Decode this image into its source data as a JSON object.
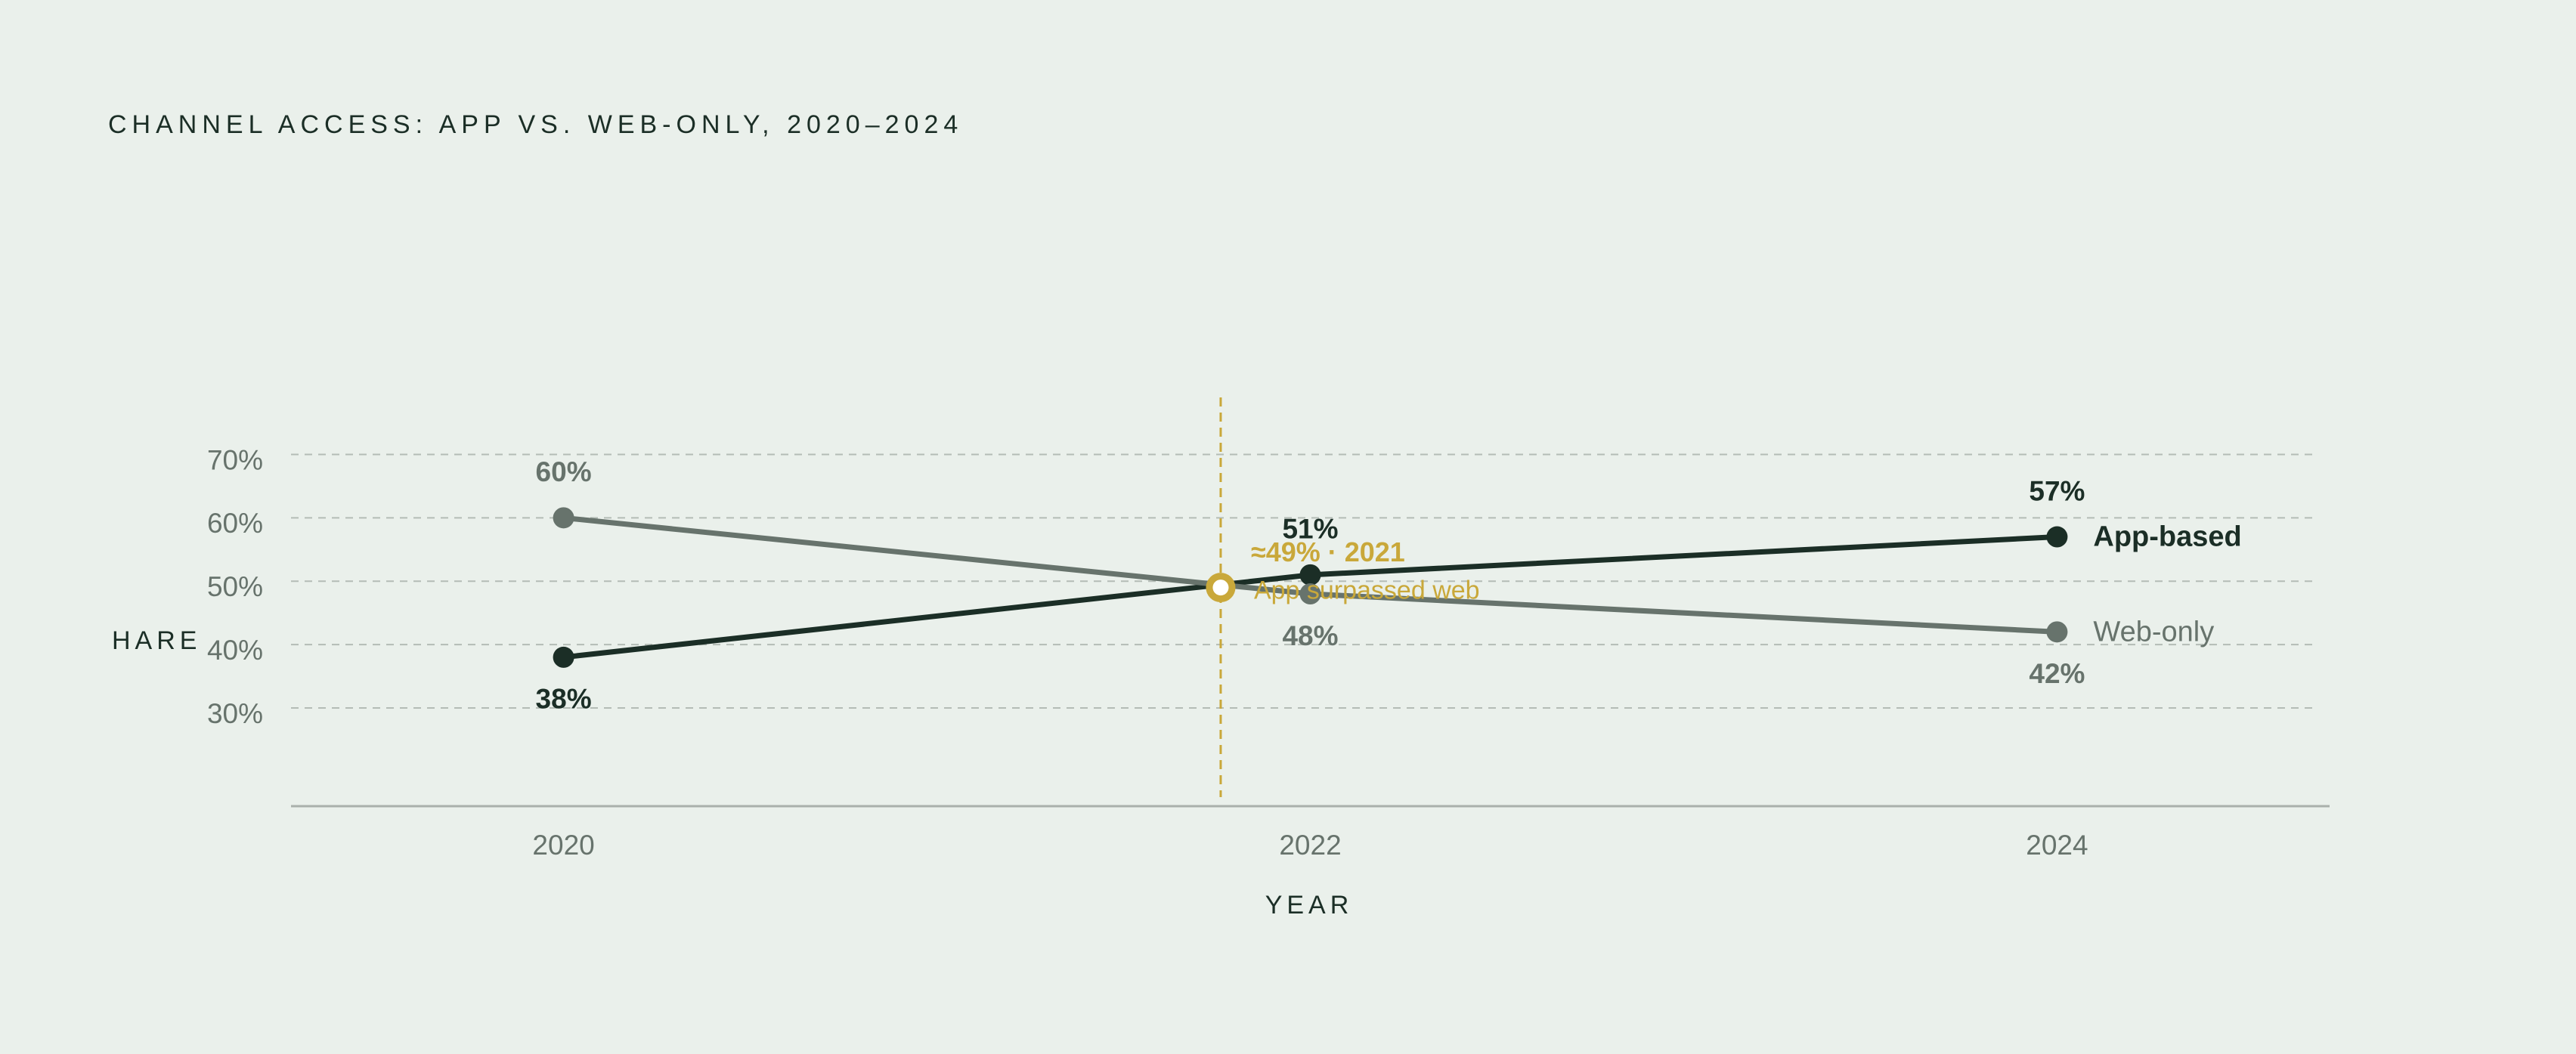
{
  "chart_data": {
    "type": "line",
    "title": "CHANNEL ACCESS: APP VS. WEB-ONLY, 2020–2024",
    "y_label": "HARE",
    "x_label": "YEAR",
    "x": [
      2020,
      2022,
      2024
    ],
    "series": [
      {
        "name": "App-based",
        "color": "#1b2e26",
        "values": [
          38,
          51,
          57
        ],
        "value_labels": [
          "38%",
          "51%",
          "57%"
        ]
      },
      {
        "name": "Web-only",
        "color": "#67736c",
        "values": [
          60,
          48,
          42
        ],
        "value_labels": [
          "60%",
          "48%",
          "42%"
        ]
      }
    ],
    "xlim": [
      2019.27,
      2024.73
    ],
    "xticks": [
      2020,
      2022,
      2024
    ],
    "ylim": [
      14.5,
      79
    ],
    "yticks": [
      {
        "value": 30,
        "label": "30%"
      },
      {
        "value": 40,
        "label": "40%"
      },
      {
        "value": 50,
        "label": "50%"
      },
      {
        "value": 60,
        "label": "60%"
      },
      {
        "value": 70,
        "label": "70%"
      }
    ],
    "grid": true,
    "annotation": {
      "x": 2021.76,
      "y": 49,
      "color": "#c9a83a",
      "label": "≈49% · 2021",
      "note": "App surpassed web"
    }
  }
}
